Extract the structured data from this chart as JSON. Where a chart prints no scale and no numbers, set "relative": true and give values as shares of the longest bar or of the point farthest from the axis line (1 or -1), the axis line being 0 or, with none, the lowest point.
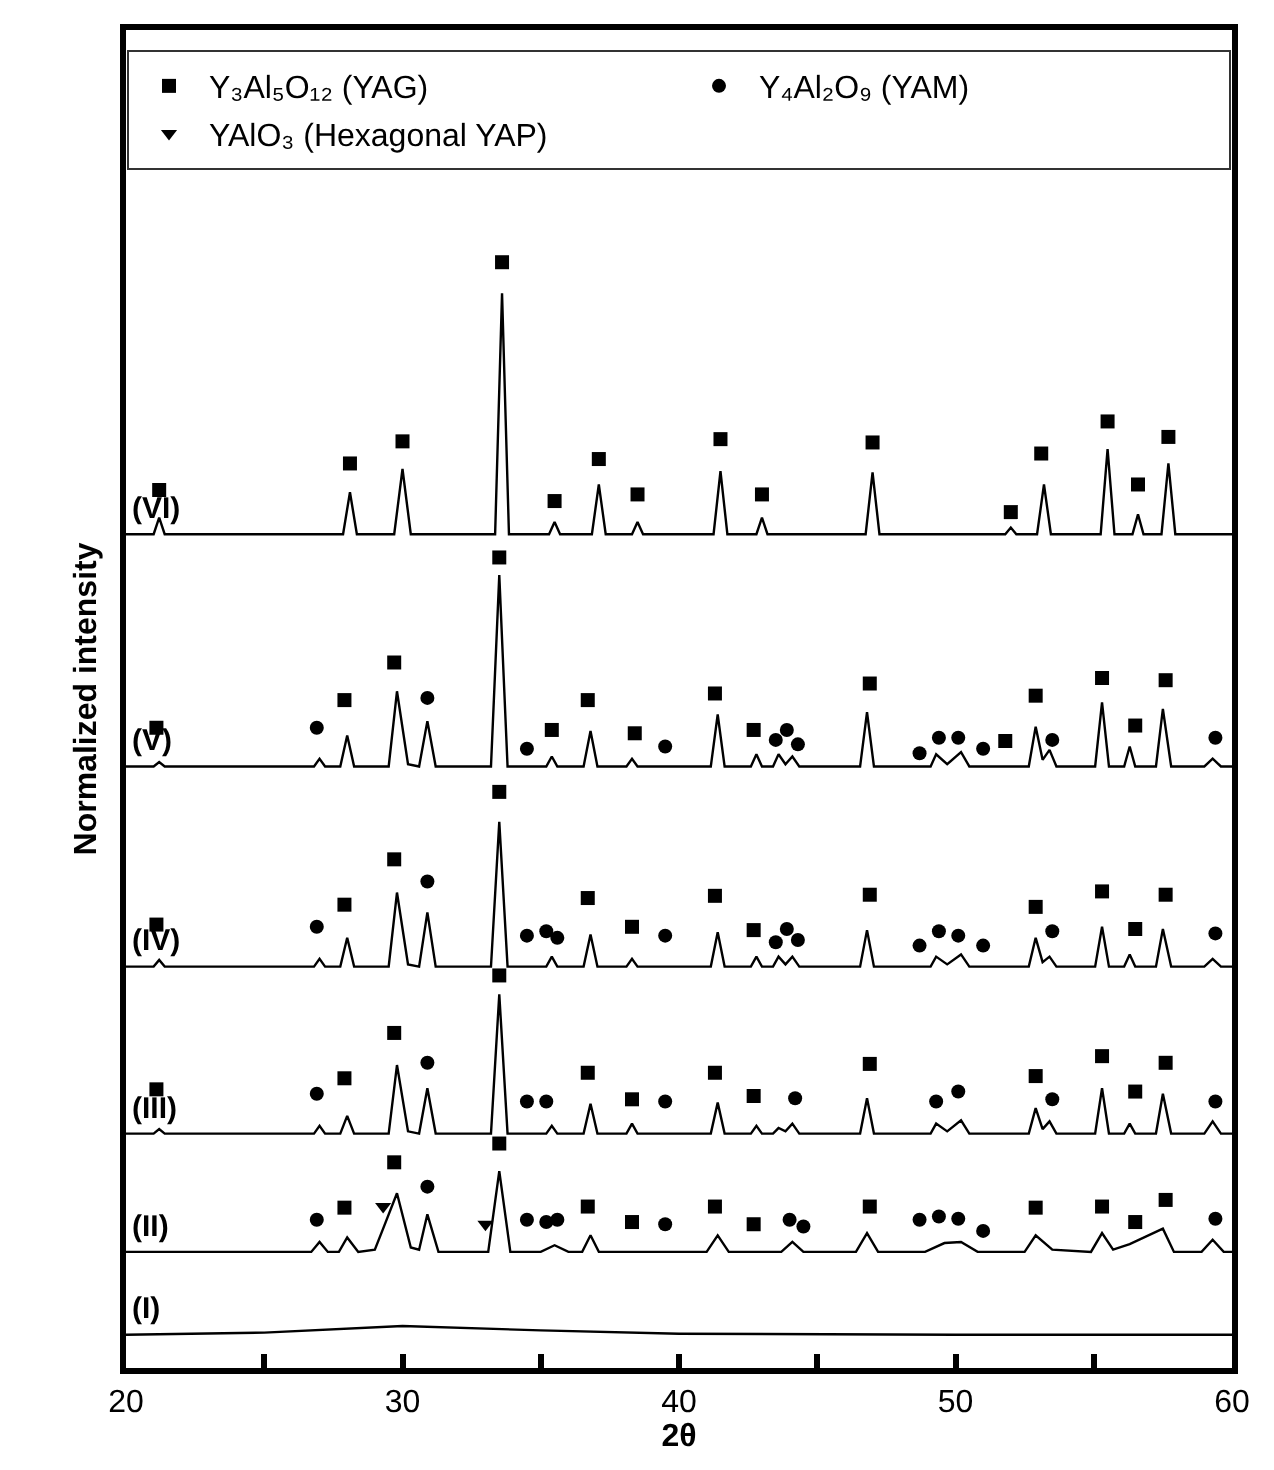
{
  "chart_data": {
    "type": "line",
    "relative": true,
    "xlabel": "2θ",
    "ylabel": "Normalized intensity",
    "xlim": [
      20,
      60
    ],
    "xticks": [
      20,
      {
        "value": 25,
        "label": null
      },
      30,
      {
        "value": 35,
        "label": null
      },
      40,
      {
        "value": 45,
        "label": null
      },
      50,
      {
        "value": 55,
        "label": null
      },
      60
    ],
    "grid": false,
    "legend": "top",
    "series": [
      {
        "name": "(VI)",
        "marker": "none",
        "color": "#000000",
        "x": [
          20,
          21.0,
          21.2,
          21.4,
          27.85,
          28.1,
          28.35,
          29.7,
          30.0,
          30.3,
          33.35,
          33.6,
          33.85,
          35.3,
          35.5,
          35.7,
          36.85,
          37.1,
          37.35,
          38.3,
          38.5,
          38.7,
          41.25,
          41.5,
          41.75,
          42.8,
          43.0,
          43.2,
          46.75,
          47.0,
          47.25,
          51.8,
          52.0,
          52.2,
          52.95,
          53.2,
          53.45,
          55.25,
          55.5,
          55.75,
          56.4,
          56.6,
          56.8,
          57.45,
          57.7,
          57.95,
          60
        ],
        "values": [
          0.754,
          0.754,
          0.769,
          0.754,
          0.754,
          0.792,
          0.754,
          0.754,
          0.813,
          0.754,
          0.754,
          0.972,
          0.754,
          0.754,
          0.765,
          0.754,
          0.754,
          0.799,
          0.754,
          0.754,
          0.765,
          0.754,
          0.754,
          0.811,
          0.754,
          0.754,
          0.769,
          0.754,
          0.754,
          0.81,
          0.754,
          0.754,
          0.76,
          0.754,
          0.754,
          0.799,
          0.754,
          0.754,
          0.831,
          0.754,
          0.754,
          0.772,
          0.754,
          0.754,
          0.818,
          0.754,
          0.754
        ]
      },
      {
        "name": "(V)",
        "marker": "none",
        "color": "#000000",
        "x": [
          20,
          21.0,
          21.2,
          21.4,
          26.8,
          27.0,
          27.2,
          27.75,
          28.0,
          28.25,
          29.5,
          29.8,
          30.2,
          30.6,
          30.9,
          31.2,
          33.2,
          33.5,
          33.8,
          35.2,
          35.4,
          35.6,
          36.55,
          36.8,
          37.05,
          38.1,
          38.3,
          38.5,
          41.15,
          41.4,
          41.65,
          42.6,
          42.8,
          43.0,
          43.4,
          43.6,
          43.85,
          44.1,
          44.35,
          46.55,
          46.8,
          47.05,
          49.1,
          49.3,
          49.7,
          50.2,
          50.5,
          52.65,
          52.9,
          53.15,
          53.4,
          53.65,
          55.05,
          55.3,
          55.55,
          56.1,
          56.3,
          56.5,
          57.25,
          57.5,
          57.8,
          59.0,
          59.3,
          59.6,
          60
        ],
        "values": [
          0.544,
          0.544,
          0.548,
          0.544,
          0.544,
          0.551,
          0.544,
          0.544,
          0.572,
          0.544,
          0.544,
          0.612,
          0.546,
          0.544,
          0.585,
          0.544,
          0.544,
          0.717,
          0.544,
          0.544,
          0.553,
          0.544,
          0.544,
          0.576,
          0.544,
          0.544,
          0.551,
          0.544,
          0.544,
          0.591,
          0.544,
          0.544,
          0.555,
          0.544,
          0.544,
          0.555,
          0.546,
          0.553,
          0.544,
          0.544,
          0.593,
          0.544,
          0.544,
          0.555,
          0.546,
          0.557,
          0.544,
          0.544,
          0.58,
          0.55,
          0.559,
          0.544,
          0.544,
          0.602,
          0.544,
          0.544,
          0.562,
          0.544,
          0.544,
          0.596,
          0.544,
          0.544,
          0.551,
          0.544,
          0.544
        ]
      },
      {
        "name": "(IV)",
        "marker": "none",
        "color": "#000000",
        "x": [
          20,
          21.0,
          21.2,
          21.4,
          26.8,
          27.0,
          27.2,
          27.75,
          28.0,
          28.25,
          29.5,
          29.8,
          30.2,
          30.6,
          30.9,
          31.2,
          33.2,
          33.5,
          33.8,
          35.2,
          35.4,
          35.6,
          36.55,
          36.8,
          37.05,
          38.1,
          38.3,
          38.5,
          41.15,
          41.4,
          41.65,
          42.6,
          42.8,
          43.0,
          43.4,
          43.6,
          43.85,
          44.1,
          44.35,
          46.55,
          46.8,
          47.05,
          49.1,
          49.3,
          49.7,
          50.2,
          50.5,
          52.65,
          52.9,
          53.15,
          53.4,
          53.65,
          55.05,
          55.3,
          55.55,
          56.1,
          56.3,
          56.5,
          57.25,
          57.5,
          57.8,
          59.0,
          59.3,
          59.6,
          60
        ],
        "values": [
          0.363,
          0.363,
          0.369,
          0.363,
          0.363,
          0.37,
          0.363,
          0.363,
          0.389,
          0.363,
          0.363,
          0.43,
          0.365,
          0.363,
          0.412,
          0.363,
          0.363,
          0.494,
          0.363,
          0.363,
          0.372,
          0.363,
          0.363,
          0.392,
          0.363,
          0.363,
          0.37,
          0.363,
          0.363,
          0.394,
          0.363,
          0.363,
          0.372,
          0.363,
          0.363,
          0.372,
          0.365,
          0.372,
          0.363,
          0.363,
          0.396,
          0.363,
          0.363,
          0.372,
          0.365,
          0.374,
          0.363,
          0.363,
          0.389,
          0.367,
          0.372,
          0.363,
          0.363,
          0.399,
          0.363,
          0.363,
          0.374,
          0.363,
          0.363,
          0.397,
          0.363,
          0.363,
          0.37,
          0.363,
          0.363
        ]
      },
      {
        "name": "(III)",
        "marker": "none",
        "color": "#000000",
        "x": [
          20,
          21.0,
          21.2,
          21.4,
          26.8,
          27.0,
          27.2,
          27.75,
          28.0,
          28.25,
          29.5,
          29.8,
          30.2,
          30.6,
          30.9,
          31.2,
          33.2,
          33.5,
          33.8,
          35.2,
          35.4,
          35.6,
          36.55,
          36.8,
          37.05,
          38.1,
          38.3,
          38.5,
          41.15,
          41.4,
          41.65,
          42.6,
          42.8,
          43.0,
          43.4,
          43.6,
          43.85,
          44.1,
          44.35,
          46.55,
          46.8,
          47.05,
          49.1,
          49.3,
          49.7,
          50.2,
          50.5,
          52.65,
          52.9,
          53.15,
          53.4,
          53.65,
          55.05,
          55.3,
          55.55,
          56.1,
          56.3,
          56.5,
          57.25,
          57.5,
          57.8,
          59.0,
          59.3,
          59.6,
          60
        ],
        "values": [
          0.212,
          0.212,
          0.216,
          0.212,
          0.212,
          0.219,
          0.212,
          0.212,
          0.228,
          0.212,
          0.212,
          0.274,
          0.214,
          0.212,
          0.253,
          0.212,
          0.212,
          0.338,
          0.212,
          0.212,
          0.219,
          0.212,
          0.212,
          0.239,
          0.212,
          0.212,
          0.221,
          0.212,
          0.212,
          0.24,
          0.212,
          0.212,
          0.219,
          0.212,
          0.212,
          0.217,
          0.214,
          0.221,
          0.212,
          0.212,
          0.244,
          0.212,
          0.212,
          0.221,
          0.214,
          0.224,
          0.212,
          0.212,
          0.235,
          0.216,
          0.223,
          0.212,
          0.212,
          0.253,
          0.212,
          0.212,
          0.221,
          0.212,
          0.212,
          0.248,
          0.212,
          0.212,
          0.223,
          0.212,
          0.212
        ]
      },
      {
        "name": "(II)",
        "marker": "none",
        "color": "#000000",
        "x": [
          20,
          26.7,
          27.0,
          27.3,
          27.7,
          28.0,
          28.4,
          29.0,
          29.3,
          29.8,
          30.3,
          30.6,
          30.9,
          31.3,
          33.1,
          33.5,
          33.9,
          35.0,
          35.5,
          36.0,
          36.5,
          36.8,
          37.1,
          41.0,
          41.4,
          41.8,
          43.7,
          44.1,
          44.5,
          46.4,
          46.8,
          47.2,
          48.9,
          49.6,
          50.2,
          50.8,
          52.5,
          52.9,
          53.5,
          54.9,
          55.3,
          55.7,
          56.3,
          57.5,
          57.9,
          58.9,
          59.3,
          59.7,
          60
        ],
        "values": [
          0.105,
          0.105,
          0.114,
          0.105,
          0.105,
          0.118,
          0.105,
          0.107,
          0.126,
          0.158,
          0.109,
          0.107,
          0.139,
          0.105,
          0.105,
          0.178,
          0.105,
          0.105,
          0.111,
          0.105,
          0.105,
          0.12,
          0.105,
          0.105,
          0.12,
          0.105,
          0.105,
          0.114,
          0.105,
          0.105,
          0.122,
          0.105,
          0.105,
          0.113,
          0.114,
          0.105,
          0.105,
          0.12,
          0.107,
          0.105,
          0.122,
          0.107,
          0.112,
          0.126,
          0.105,
          0.105,
          0.116,
          0.105,
          0.105
        ]
      },
      {
        "name": "(I)",
        "marker": "none",
        "color": "#000000",
        "x": [
          20,
          25,
          30,
          35,
          40,
          50,
          60
        ],
        "values": [
          0.03,
          0.032,
          0.038,
          0.034,
          0.031,
          0.03,
          0.03
        ]
      },
      {
        "name": "Y₃Al₅O₁₂ (YAG)",
        "type": "scatter",
        "marker": "square",
        "color": "#000000",
        "x": [
          21.2,
          28.1,
          30.0,
          33.6,
          35.5,
          37.1,
          38.5,
          41.5,
          43.0,
          47.0,
          52.0,
          53.1,
          55.5,
          56.6,
          57.7,
          21.1,
          27.9,
          29.7,
          33.5,
          35.4,
          36.7,
          38.4,
          41.3,
          42.7,
          46.9,
          51.8,
          52.9,
          55.3,
          56.5,
          57.6,
          21.1,
          27.9,
          29.7,
          33.5,
          36.7,
          38.3,
          41.3,
          42.7,
          46.9,
          52.9,
          55.3,
          56.5,
          57.6,
          21.1,
          27.9,
          29.7,
          33.5,
          36.7,
          38.3,
          41.3,
          42.7,
          46.9,
          52.9,
          55.3,
          56.5,
          57.6,
          27.9,
          29.7,
          33.5,
          36.7,
          38.3,
          41.3,
          42.7,
          46.9,
          52.9,
          55.3,
          56.5,
          57.6
        ],
        "values": [
          0.794,
          0.818,
          0.838,
          1.0,
          0.784,
          0.822,
          0.79,
          0.84,
          0.79,
          0.837,
          0.774,
          0.827,
          0.856,
          0.799,
          0.842,
          0.579,
          0.604,
          0.638,
          0.733,
          0.577,
          0.604,
          0.574,
          0.61,
          0.577,
          0.619,
          0.567,
          0.608,
          0.624,
          0.581,
          0.622,
          0.401,
          0.419,
          0.46,
          0.521,
          0.425,
          0.399,
          0.427,
          0.396,
          0.428,
          0.417,
          0.431,
          0.397,
          0.428,
          0.252,
          0.262,
          0.303,
          0.355,
          0.267,
          0.243,
          0.267,
          0.246,
          0.275,
          0.264,
          0.282,
          0.25,
          0.276,
          0.145,
          0.186,
          0.203,
          0.146,
          0.132,
          0.146,
          0.13,
          0.146,
          0.145,
          0.146,
          0.132,
          0.152
        ]
      },
      {
        "name": "Y₄Al₂O₉ (YAM)",
        "type": "scatter",
        "marker": "circle",
        "color": "#000000",
        "x": [
          26.9,
          30.9,
          34.5,
          39.5,
          43.5,
          43.9,
          44.3,
          48.7,
          49.4,
          50.1,
          51.0,
          53.5,
          59.4,
          26.9,
          30.9,
          34.5,
          35.2,
          35.6,
          39.5,
          43.5,
          43.9,
          44.3,
          48.7,
          49.4,
          50.1,
          51.0,
          53.5,
          59.4,
          26.9,
          30.9,
          34.5,
          35.2,
          39.5,
          44.2,
          49.3,
          50.1,
          53.5,
          59.4,
          26.9,
          30.9,
          34.5,
          35.2,
          35.6,
          39.5,
          44.0,
          44.5,
          48.7,
          49.4,
          50.1,
          51.0,
          59.4
        ],
        "values": [
          0.579,
          0.606,
          0.56,
          0.562,
          0.568,
          0.577,
          0.564,
          0.556,
          0.57,
          0.57,
          0.56,
          0.568,
          0.57,
          0.399,
          0.44,
          0.391,
          0.395,
          0.389,
          0.391,
          0.385,
          0.397,
          0.387,
          0.382,
          0.395,
          0.391,
          0.382,
          0.395,
          0.393,
          0.248,
          0.276,
          0.241,
          0.241,
          0.241,
          0.244,
          0.241,
          0.25,
          0.243,
          0.241,
          0.134,
          0.164,
          0.134,
          0.132,
          0.134,
          0.13,
          0.134,
          0.128,
          0.134,
          0.137,
          0.135,
          0.124,
          0.135
        ]
      },
      {
        "name": "YAlO₃ (Hexagonal YAP)",
        "type": "scatter",
        "marker": "triangle",
        "color": "#000000",
        "x": [
          29.3,
          33.0
        ],
        "values": [
          0.146,
          0.13
        ]
      }
    ]
  }
}
